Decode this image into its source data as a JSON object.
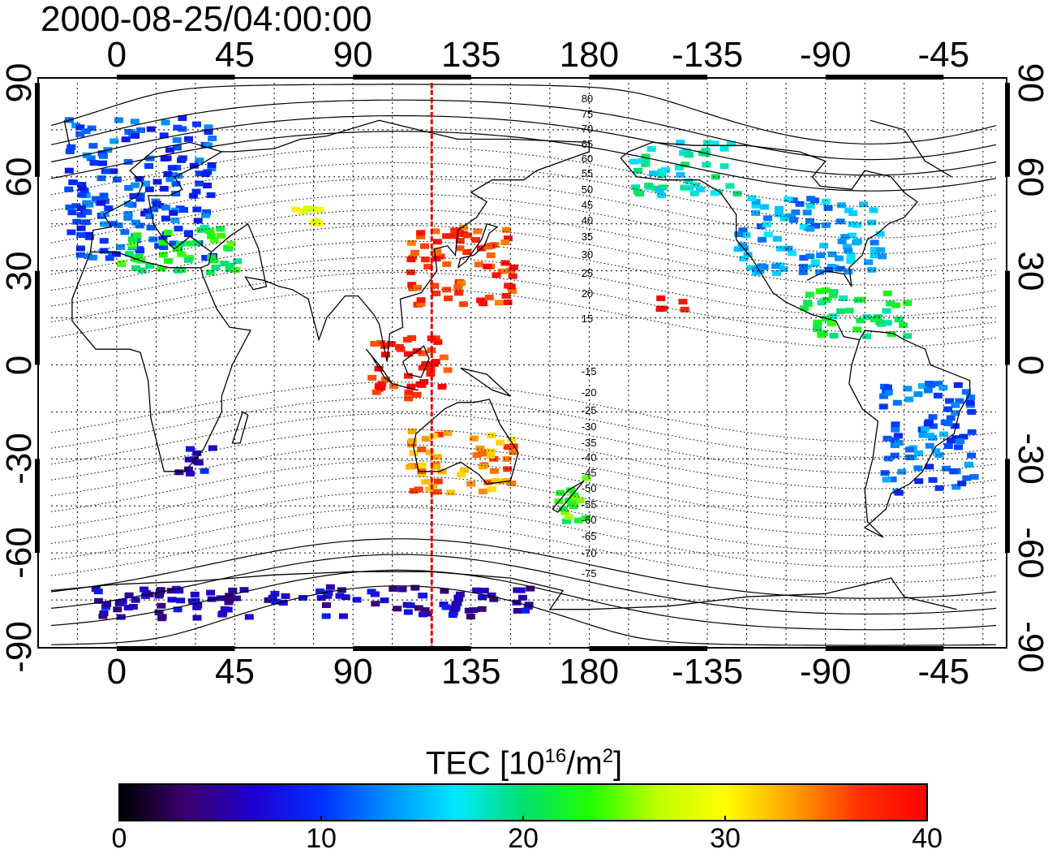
{
  "title": "2000-08-25/04:00:00",
  "map": {
    "x_ticks_top": [
      "0",
      "45",
      "90",
      "135",
      "180",
      "-135",
      "-90",
      "-45"
    ],
    "x_ticks_bottom": [
      "0",
      "45",
      "90",
      "135",
      "180",
      "-135",
      "-90",
      "-45"
    ],
    "y_ticks_left": [
      "90",
      "60",
      "30",
      "0",
      "-30",
      "-60",
      "-90"
    ],
    "y_ticks_right": [
      "90",
      "60",
      "30",
      "0",
      "-30",
      "-60",
      "-90"
    ],
    "projection": "equirectangular",
    "lon_range": [
      -25,
      335
    ],
    "lat_range": [
      -90,
      90
    ],
    "grid": true,
    "meridian_marker_lon": 120,
    "meridian_marker_color": "#e00000",
    "contour_labels": [
      "80",
      "75",
      "70",
      "65",
      "60",
      "55",
      "50",
      "45",
      "40",
      "35",
      "30",
      "25",
      "20",
      "15",
      "-15",
      "-20",
      "-25",
      "-30",
      "-35",
      "-40",
      "-45",
      "-50",
      "-55",
      "-60",
      "-65",
      "-70",
      "-75"
    ]
  },
  "colorbar": {
    "label_main": "TEC  [10",
    "label_sup1": "16",
    "label_mid": "/m",
    "label_sup2": "2",
    "label_end": "]",
    "ticks": [
      "0",
      "10",
      "20",
      "30",
      "40"
    ],
    "range": [
      0,
      40
    ],
    "colormap": [
      "#000000",
      "#3a0070",
      "#2000d0",
      "#0030ff",
      "#0090ff",
      "#00e8ff",
      "#00e070",
      "#20ff00",
      "#c0ff00",
      "#ffff00",
      "#ffa000",
      "#ff3000",
      "#ff0000"
    ]
  },
  "chart_data": {
    "type": "heatmap",
    "title": "2000-08-25/04:00:00",
    "xlabel": "",
    "ylabel": "",
    "colorbar_label": "TEC [10^16/m^2]",
    "xlim": [
      -25,
      335
    ],
    "ylim": [
      -90,
      90
    ],
    "value_range": [
      0,
      40
    ],
    "regions": [
      {
        "lon": [
          -20,
          35
        ],
        "lat": [
          35,
          80
        ],
        "tec": 11
      },
      {
        "lon": [
          0,
          45
        ],
        "lat": [
          30,
          45
        ],
        "tec": 22
      },
      {
        "lon": [
          65,
          80
        ],
        "lat": [
          45,
          52
        ],
        "tec": 28
      },
      {
        "lon": [
          110,
          150
        ],
        "lat": [
          20,
          45
        ],
        "tec": 37
      },
      {
        "lon": [
          95,
          125
        ],
        "lat": [
          -10,
          10
        ],
        "tec": 38
      },
      {
        "lon": [
          110,
          150
        ],
        "lat": [
          -40,
          -20
        ],
        "tec": 34
      },
      {
        "lon": [
          165,
          180
        ],
        "lat": [
          -50,
          -35
        ],
        "tec": 23
      },
      {
        "lon": [
          20,
          35
        ],
        "lat": [
          -35,
          -25
        ],
        "tec": 7
      },
      {
        "lon": [
          -165,
          -125
        ],
        "lat": [
          55,
          72
        ],
        "tec": 18
      },
      {
        "lon": [
          -125,
          -70
        ],
        "lat": [
          30,
          55
        ],
        "tec": 14
      },
      {
        "lon": [
          -100,
          -60
        ],
        "lat": [
          10,
          25
        ],
        "tec": 21
      },
      {
        "lon": [
          -70,
          -35
        ],
        "lat": [
          -40,
          -5
        ],
        "tec": 12
      },
      {
        "lon": [
          -10,
          160
        ],
        "lat": [
          -80,
          -70
        ],
        "tec": 6
      },
      {
        "lon": [
          -155,
          -145
        ],
        "lat": [
          18,
          24
        ],
        "tec": 39
      }
    ]
  }
}
